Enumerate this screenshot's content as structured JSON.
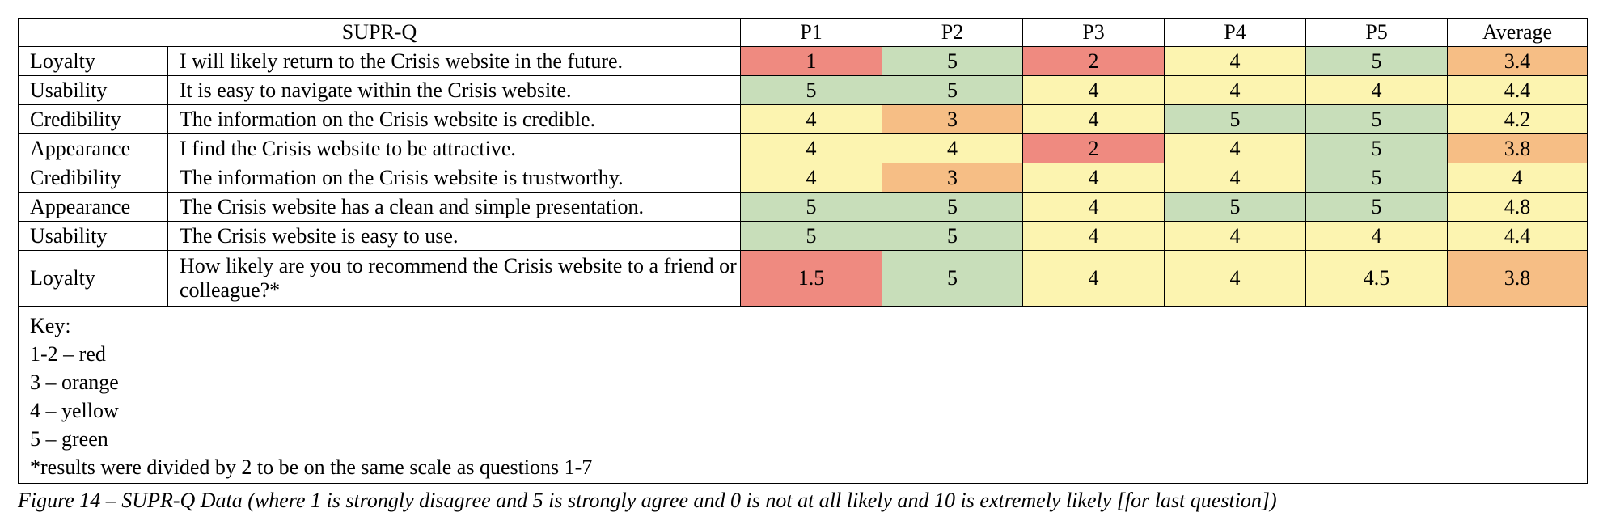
{
  "header": {
    "title": "SUPR-Q",
    "columns": [
      "P1",
      "P2",
      "P3",
      "P4",
      "P5",
      "Average"
    ]
  },
  "rows": [
    {
      "category": "Loyalty",
      "question": "I will likely return to the Crisis website in the future.",
      "values": [
        "1",
        "5",
        "2",
        "4",
        "5",
        "3.4"
      ],
      "colors": [
        "red",
        "green",
        "red",
        "yellow",
        "green",
        "orange"
      ]
    },
    {
      "category": "Usability",
      "question": "It is easy to navigate within the Crisis website.",
      "values": [
        "5",
        "5",
        "4",
        "4",
        "4",
        "4.4"
      ],
      "colors": [
        "green",
        "green",
        "yellow",
        "yellow",
        "yellow",
        "yellow"
      ]
    },
    {
      "category": "Credibility",
      "question": "The information on the Crisis website is credible.",
      "values": [
        "4",
        "3",
        "4",
        "5",
        "5",
        "4.2"
      ],
      "colors": [
        "yellow",
        "orange",
        "yellow",
        "green",
        "green",
        "yellow"
      ]
    },
    {
      "category": "Appearance",
      "question": "I find the Crisis website to be attractive.",
      "values": [
        "4",
        "4",
        "2",
        "4",
        "5",
        "3.8"
      ],
      "colors": [
        "yellow",
        "yellow",
        "red",
        "yellow",
        "green",
        "orange"
      ]
    },
    {
      "category": "Credibility",
      "question": "The information on the Crisis website is trustworthy.",
      "values": [
        "4",
        "3",
        "4",
        "4",
        "5",
        "4"
      ],
      "colors": [
        "yellow",
        "orange",
        "yellow",
        "yellow",
        "green",
        "yellow"
      ]
    },
    {
      "category": "Appearance",
      "question": "The Crisis website has a clean and simple presentation.",
      "values": [
        "5",
        "5",
        "4",
        "5",
        "5",
        "4.8"
      ],
      "colors": [
        "green",
        "green",
        "yellow",
        "green",
        "green",
        "yellow"
      ]
    },
    {
      "category": "Usability",
      "question": "The Crisis website is easy to use.",
      "values": [
        "5",
        "5",
        "4",
        "4",
        "4",
        "4.4"
      ],
      "colors": [
        "green",
        "green",
        "yellow",
        "yellow",
        "yellow",
        "yellow"
      ]
    },
    {
      "category": "Loyalty",
      "question": "How likely are you to recommend the Crisis website to a friend or colleague?*",
      "values": [
        "1.5",
        "5",
        "4",
        "4",
        "4.5",
        "3.8"
      ],
      "colors": [
        "red",
        "green",
        "yellow",
        "yellow",
        "yellow",
        "orange"
      ]
    }
  ],
  "key": {
    "title": "Key:",
    "lines": [
      "1-2 – red",
      "3 – orange",
      "4 – yellow",
      "5 – green"
    ],
    "note": "*results were divided by 2 to be on the same scale as questions 1-7"
  },
  "caption": "Figure 14 – SUPR-Q Data (where 1 is strongly disagree and 5 is strongly agree and 0 is not at all likely and 10 is extremely likely [for last question])",
  "palette": {
    "red": "#ef8a80",
    "orange": "#f6be85",
    "yellow": "#fcf4b0",
    "green": "#c8deba"
  }
}
